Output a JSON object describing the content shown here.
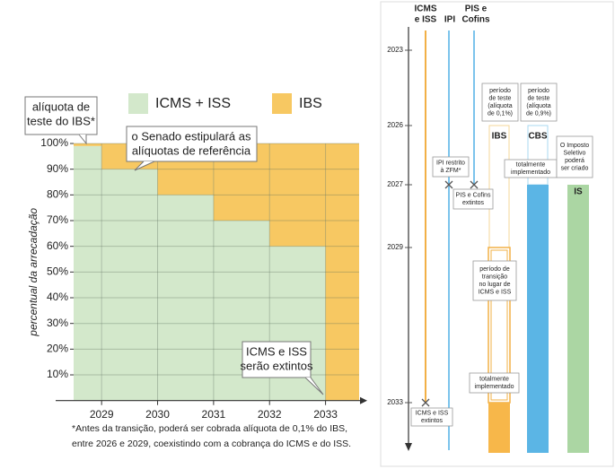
{
  "chart_data": {
    "type": "step-area",
    "stacked": true,
    "ylabel": "percentual da arrecadação",
    "x": [
      2028.5,
      2029,
      2030,
      2031,
      2032,
      2033
    ],
    "xlim": [
      2028.5,
      2033.6
    ],
    "xticks": [
      2029,
      2030,
      2031,
      2032,
      2033
    ],
    "ylim": [
      0,
      100
    ],
    "yticks": [
      {
        "value": 10,
        "label": "10%"
      },
      {
        "value": 20,
        "label": "20%"
      },
      {
        "value": 30,
        "label": "30%"
      },
      {
        "value": 40,
        "label": "40%"
      },
      {
        "value": 50,
        "label": "50%"
      },
      {
        "value": 60,
        "label": "60%"
      },
      {
        "value": 70,
        "label": "70%"
      },
      {
        "value": 80,
        "label": "80%"
      },
      {
        "value": 90,
        "label": "90%"
      },
      {
        "value": 100,
        "label": "100%"
      }
    ],
    "grid": true,
    "series": [
      {
        "name": "ICMS + ISS",
        "color": "#d3e8cb",
        "values": [
          99,
          90,
          80,
          70,
          60,
          0
        ]
      },
      {
        "name": "IBS",
        "color": "#f7c862",
        "values": [
          1,
          10,
          20,
          30,
          40,
          100
        ]
      }
    ],
    "annotations": [
      {
        "lines": [
          "alíquota de",
          "teste do IBS*"
        ]
      },
      {
        "lines": [
          "o Senado estipulará as",
          "alíquotas de referência"
        ]
      },
      {
        "lines": [
          "ICMS e ISS",
          "serão extintos"
        ]
      }
    ],
    "footnote": [
      "*Antes da transição, poderá ser cobrada alíquota de 0,1% do IBS,",
      "entre 2026 e 2029, coexistindo com a cobrança do ICMS e do ISS."
    ]
  },
  "timeline": {
    "years": [
      "2023",
      "2026",
      "2027",
      "2029",
      "2033"
    ],
    "headers": [
      [
        "ICMS",
        "e ISS"
      ],
      [
        "IPI"
      ],
      [
        "PIS e",
        "Cofins"
      ]
    ],
    "columns": [
      "IBS",
      "CBS",
      "IS"
    ],
    "notes": {
      "ipi": [
        "IPI restrito",
        "à ZFM*"
      ],
      "pis": [
        "PIS e Cofins",
        "extintos"
      ],
      "ibs_test": [
        "período",
        "de teste",
        "(alíquota",
        "de 0,1%)"
      ],
      "cbs_test": [
        "período",
        "de teste",
        "(alíquota",
        "de 0,9%)"
      ],
      "cbs_impl": [
        "totalmente",
        "implementado"
      ],
      "is": [
        "O Imposto",
        "Seletivo",
        "poderá",
        "ser criado"
      ],
      "ibs_transition": [
        "período de",
        "transição",
        "no lugar de",
        "ICMS e ISS"
      ],
      "ibs_impl": [
        "totalmente",
        "implementado"
      ],
      "icms": [
        "ICMS e ISS",
        "extintos"
      ]
    }
  }
}
